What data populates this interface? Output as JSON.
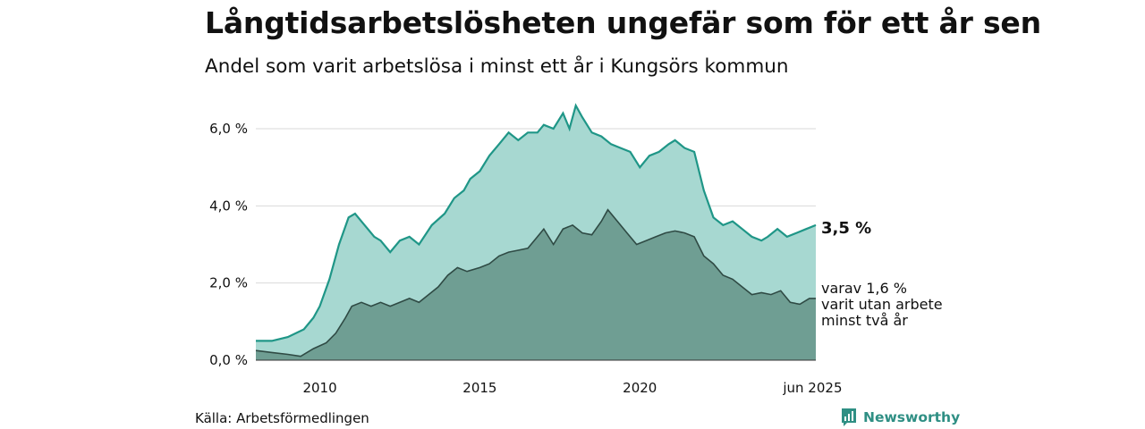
{
  "title": "Långtidsarbetslösheten ungefär som för ett år sen",
  "subtitle": "Andel som varit arbetslösa i minst ett år i Kungsörs kommun",
  "source": "Källa: Arbetsförmedlingen",
  "brand": "Newsworthy",
  "colors": {
    "area_one_year": "#a7d8d1",
    "line_one_year": "#1f9687",
    "area_two_year": "#6f9e93",
    "line_two_year": "#2f4a44",
    "grid": "#d9d9d9",
    "brand": "#2f8f84"
  },
  "chart_data": {
    "type": "area",
    "x_start": "2008-01",
    "x_end": "2025-06",
    "xlim": [
      2008.0,
      2025.5
    ],
    "ylim": [
      0,
      6.8
    ],
    "y_ticks": [
      0,
      2,
      4,
      6
    ],
    "y_tick_labels": [
      "0,0 %",
      "2,0 %",
      "4,0 %",
      "6,0 %"
    ],
    "x_ticks": [
      2010,
      2015,
      2020,
      2025.4
    ],
    "x_tick_labels": [
      "2010",
      "2015",
      "2020",
      "jun 2025"
    ],
    "grid": true,
    "annotations": {
      "one_year_value": "3,5 %",
      "two_year_lines": [
        "varav 1,6 %",
        "varit utan arbete",
        "minst två år"
      ]
    },
    "series": [
      {
        "key": "one_year",
        "points": [
          [
            2008.0,
            0.5
          ],
          [
            2008.5,
            0.5
          ],
          [
            2009.0,
            0.6
          ],
          [
            2009.5,
            0.8
          ],
          [
            2009.8,
            1.1
          ],
          [
            2010.0,
            1.4
          ],
          [
            2010.3,
            2.1
          ],
          [
            2010.6,
            3.0
          ],
          [
            2010.9,
            3.7
          ],
          [
            2011.1,
            3.8
          ],
          [
            2011.4,
            3.5
          ],
          [
            2011.7,
            3.2
          ],
          [
            2011.9,
            3.1
          ],
          [
            2012.2,
            2.8
          ],
          [
            2012.5,
            3.1
          ],
          [
            2012.8,
            3.2
          ],
          [
            2013.1,
            3.0
          ],
          [
            2013.5,
            3.5
          ],
          [
            2013.9,
            3.8
          ],
          [
            2014.2,
            4.2
          ],
          [
            2014.5,
            4.4
          ],
          [
            2014.7,
            4.7
          ],
          [
            2015.0,
            4.9
          ],
          [
            2015.3,
            5.3
          ],
          [
            2015.6,
            5.6
          ],
          [
            2015.9,
            5.9
          ],
          [
            2016.2,
            5.7
          ],
          [
            2016.5,
            5.9
          ],
          [
            2016.8,
            5.9
          ],
          [
            2017.0,
            6.1
          ],
          [
            2017.3,
            6.0
          ],
          [
            2017.6,
            6.4
          ],
          [
            2017.8,
            6.0
          ],
          [
            2018.0,
            6.6
          ],
          [
            2018.2,
            6.3
          ],
          [
            2018.5,
            5.9
          ],
          [
            2018.8,
            5.8
          ],
          [
            2019.1,
            5.6
          ],
          [
            2019.4,
            5.5
          ],
          [
            2019.7,
            5.4
          ],
          [
            2020.0,
            5.0
          ],
          [
            2020.3,
            5.3
          ],
          [
            2020.6,
            5.4
          ],
          [
            2020.9,
            5.6
          ],
          [
            2021.1,
            5.7
          ],
          [
            2021.4,
            5.5
          ],
          [
            2021.7,
            5.4
          ],
          [
            2022.0,
            4.4
          ],
          [
            2022.3,
            3.7
          ],
          [
            2022.6,
            3.5
          ],
          [
            2022.9,
            3.6
          ],
          [
            2023.2,
            3.4
          ],
          [
            2023.5,
            3.2
          ],
          [
            2023.8,
            3.1
          ],
          [
            2024.0,
            3.2
          ],
          [
            2024.3,
            3.4
          ],
          [
            2024.6,
            3.2
          ],
          [
            2024.9,
            3.3
          ],
          [
            2025.2,
            3.4
          ],
          [
            2025.5,
            3.5
          ]
        ]
      },
      {
        "key": "two_year",
        "points": [
          [
            2008.0,
            0.25
          ],
          [
            2008.5,
            0.2
          ],
          [
            2009.0,
            0.15
          ],
          [
            2009.4,
            0.1
          ],
          [
            2009.8,
            0.3
          ],
          [
            2010.2,
            0.45
          ],
          [
            2010.5,
            0.7
          ],
          [
            2010.8,
            1.1
          ],
          [
            2011.0,
            1.4
          ],
          [
            2011.3,
            1.5
          ],
          [
            2011.6,
            1.4
          ],
          [
            2011.9,
            1.5
          ],
          [
            2012.2,
            1.4
          ],
          [
            2012.5,
            1.5
          ],
          [
            2012.8,
            1.6
          ],
          [
            2013.1,
            1.5
          ],
          [
            2013.4,
            1.7
          ],
          [
            2013.7,
            1.9
          ],
          [
            2014.0,
            2.2
          ],
          [
            2014.3,
            2.4
          ],
          [
            2014.6,
            2.3
          ],
          [
            2015.0,
            2.4
          ],
          [
            2015.3,
            2.5
          ],
          [
            2015.6,
            2.7
          ],
          [
            2015.9,
            2.8
          ],
          [
            2016.2,
            2.85
          ],
          [
            2016.5,
            2.9
          ],
          [
            2016.8,
            3.2
          ],
          [
            2017.0,
            3.4
          ],
          [
            2017.3,
            3.0
          ],
          [
            2017.6,
            3.4
          ],
          [
            2017.9,
            3.5
          ],
          [
            2018.2,
            3.3
          ],
          [
            2018.5,
            3.25
          ],
          [
            2018.8,
            3.6
          ],
          [
            2019.0,
            3.9
          ],
          [
            2019.3,
            3.6
          ],
          [
            2019.6,
            3.3
          ],
          [
            2019.9,
            3.0
          ],
          [
            2020.2,
            3.1
          ],
          [
            2020.5,
            3.2
          ],
          [
            2020.8,
            3.3
          ],
          [
            2021.1,
            3.35
          ],
          [
            2021.4,
            3.3
          ],
          [
            2021.7,
            3.2
          ],
          [
            2022.0,
            2.7
          ],
          [
            2022.3,
            2.5
          ],
          [
            2022.6,
            2.2
          ],
          [
            2022.9,
            2.1
          ],
          [
            2023.2,
            1.9
          ],
          [
            2023.5,
            1.7
          ],
          [
            2023.8,
            1.75
          ],
          [
            2024.1,
            1.7
          ],
          [
            2024.4,
            1.8
          ],
          [
            2024.7,
            1.5
          ],
          [
            2025.0,
            1.45
          ],
          [
            2025.3,
            1.6
          ],
          [
            2025.5,
            1.6
          ]
        ]
      }
    ]
  }
}
